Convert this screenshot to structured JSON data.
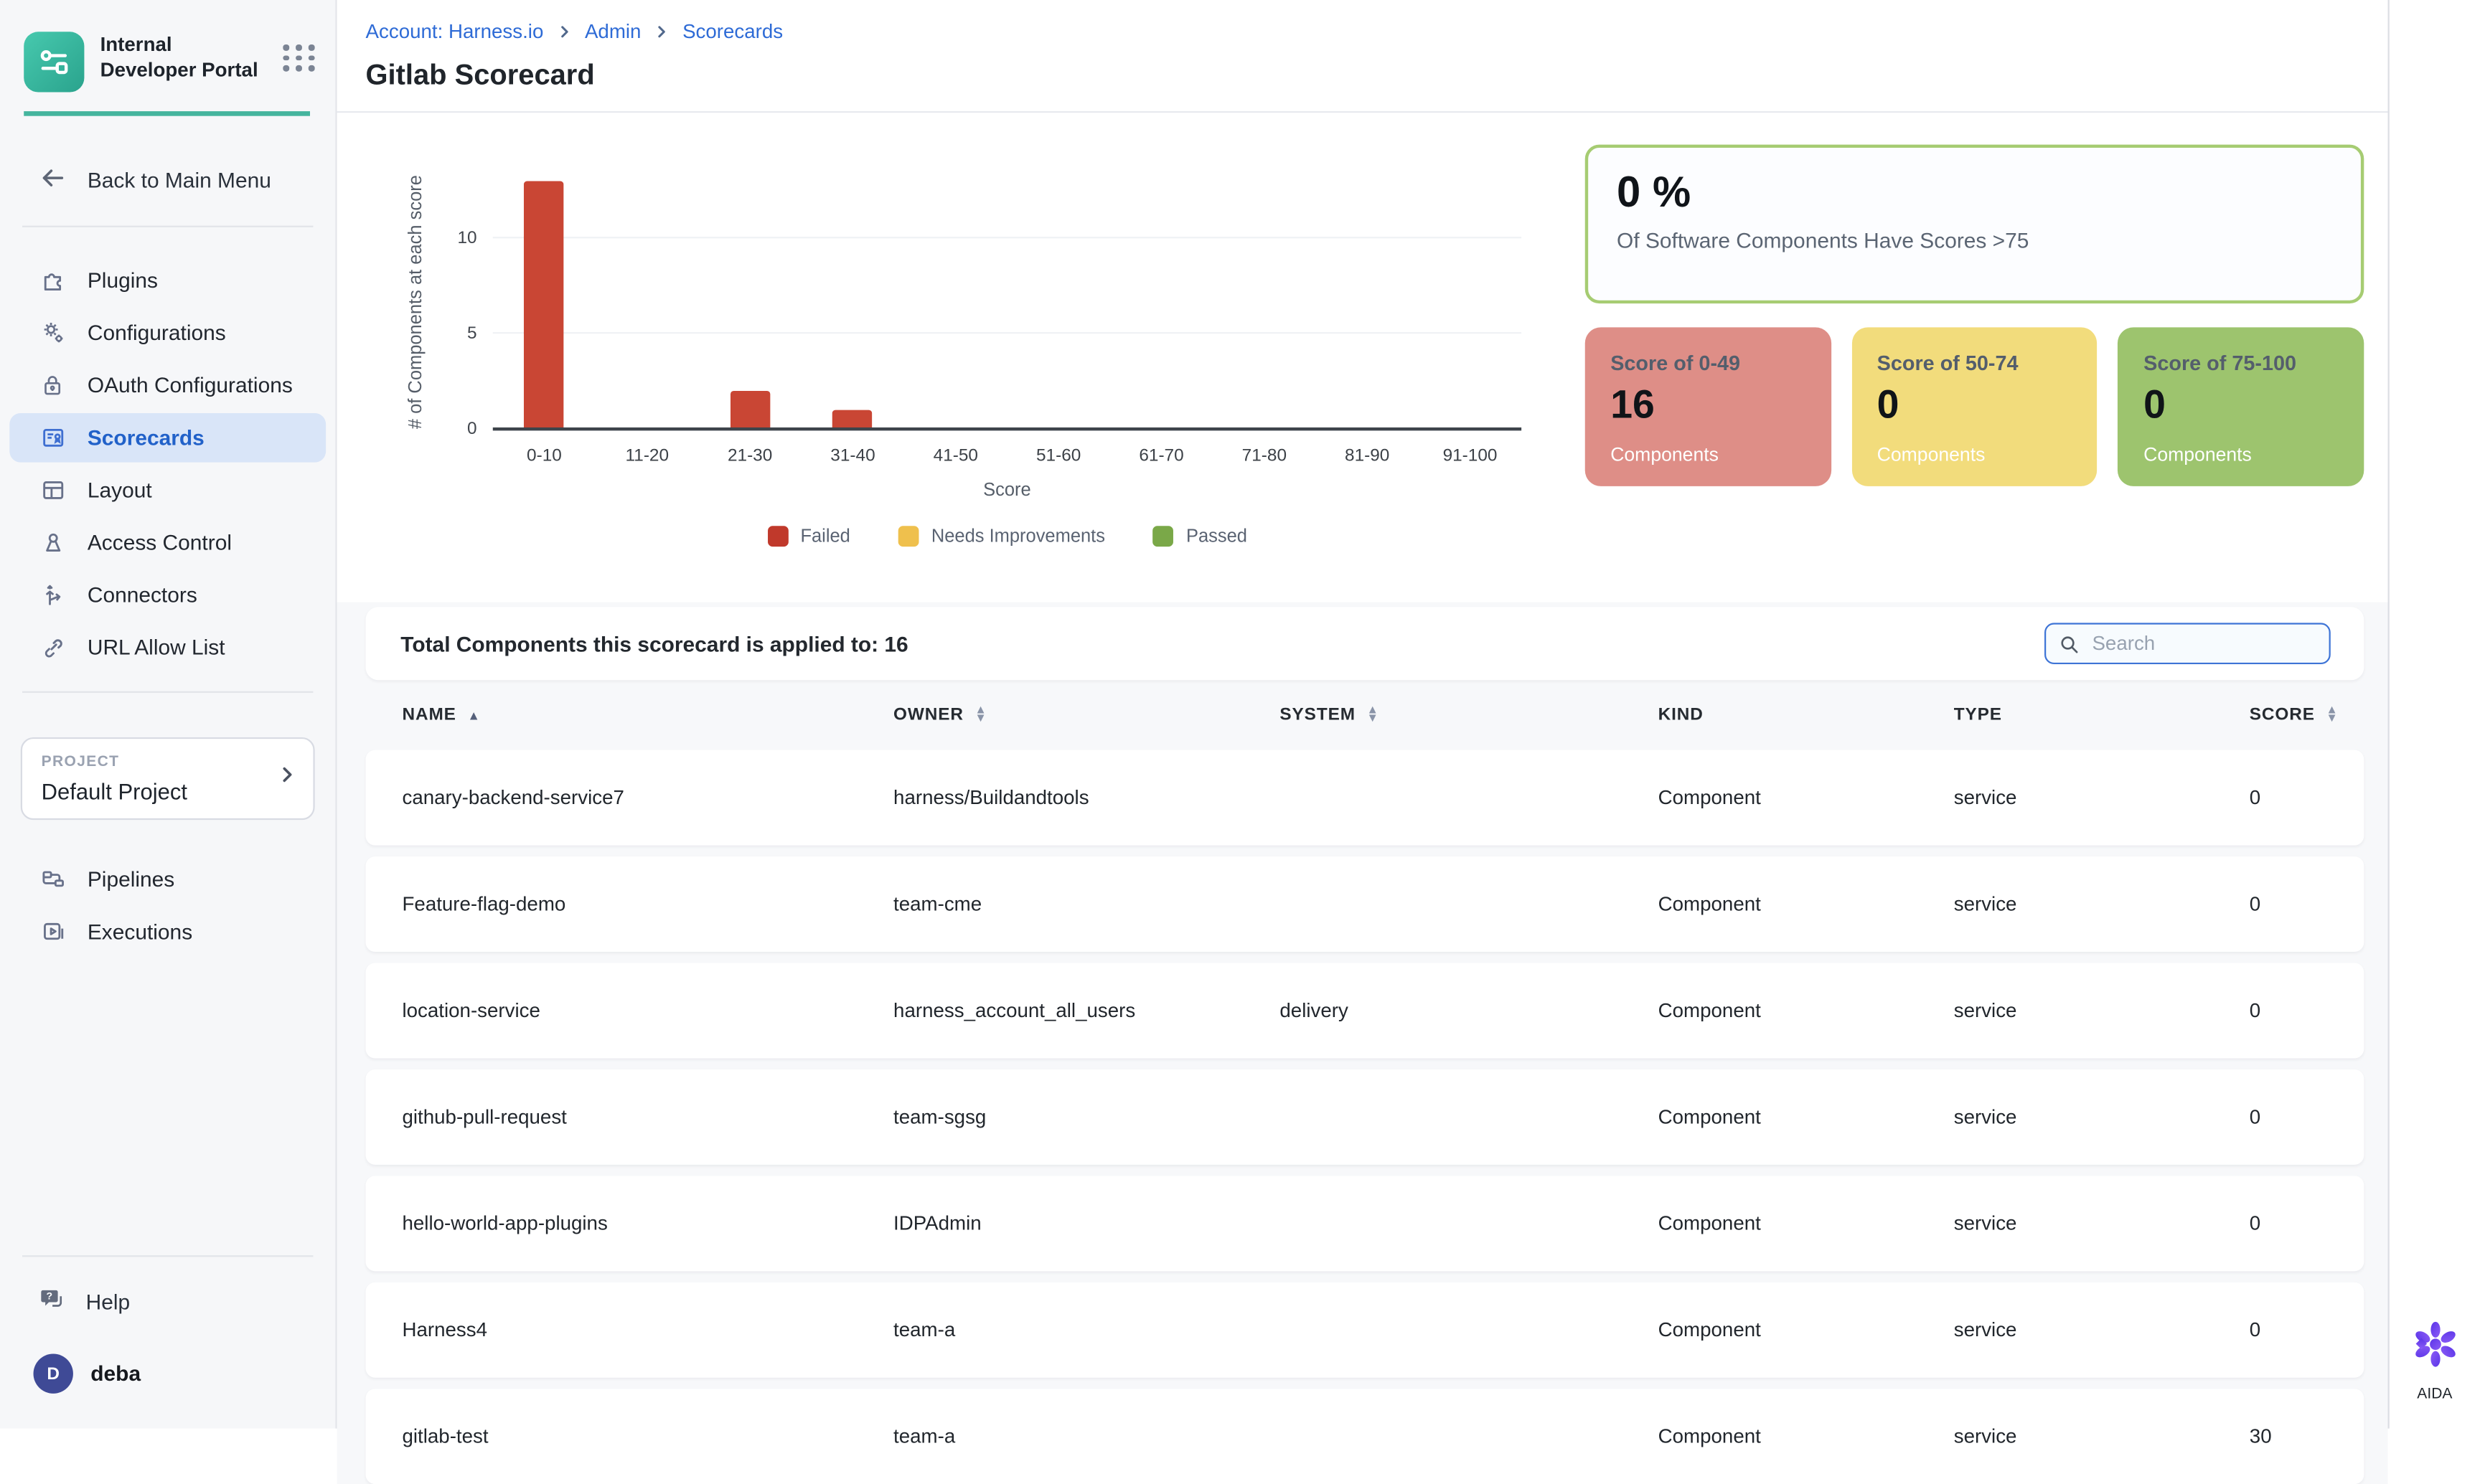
{
  "sidebar": {
    "logo_title": "Internal Developer Portal",
    "back_label": "Back to Main Menu",
    "items": [
      {
        "label": "Plugins"
      },
      {
        "label": "Configurations"
      },
      {
        "label": "OAuth Configurations"
      },
      {
        "label": "Scorecards"
      },
      {
        "label": "Layout"
      },
      {
        "label": "Access Control"
      },
      {
        "label": "Connectors"
      },
      {
        "label": "URL Allow List"
      }
    ],
    "project_label": "PROJECT",
    "project_name": "Default Project",
    "bottom_items": [
      {
        "label": "Pipelines"
      },
      {
        "label": "Executions"
      }
    ],
    "help_label": "Help",
    "user_name": "deba",
    "user_initial": "D"
  },
  "breadcrumb": {
    "items": [
      "Account: Harness.io",
      "Admin",
      "Scorecards"
    ]
  },
  "page_title": "Gitlab Scorecard",
  "chart_data": {
    "type": "bar",
    "title": "",
    "categories": [
      "0-10",
      "11-20",
      "21-30",
      "31-40",
      "41-50",
      "51-60",
      "61-70",
      "71-80",
      "81-90",
      "91-100"
    ],
    "values": [
      13,
      0,
      2,
      1,
      0,
      0,
      0,
      0,
      0,
      0
    ],
    "bar_color": "#c94634",
    "xlabel": "Score",
    "ylabel": "# of Components at each score",
    "ylim": [
      0,
      13.3
    ],
    "yticks": [
      0,
      5,
      10
    ],
    "grid": "horizontal",
    "legend_position": "bottom",
    "legend": [
      {
        "label": "Failed",
        "color": "#c0392b"
      },
      {
        "label": "Needs Improvements",
        "color": "#efc04d"
      },
      {
        "label": "Passed",
        "color": "#7aa848"
      }
    ]
  },
  "summary": {
    "percent": "0 %",
    "percent_caption": "Of Software Components Have Scores >75",
    "cards": [
      {
        "label": "Score of 0-49",
        "value": "16",
        "caption": "Components",
        "color": "#de8e87"
      },
      {
        "label": "Score of 50-74",
        "value": "0",
        "caption": "Components",
        "color": "#f2dc7c"
      },
      {
        "label": "Score of 75-100",
        "value": "0",
        "caption": "Components",
        "color": "#9dc46e"
      }
    ]
  },
  "toolbar": {
    "total_text": "Total Components this scorecard is applied to: 16",
    "search_placeholder": "Search"
  },
  "table": {
    "columns": [
      {
        "label": "NAME",
        "sort": "asc"
      },
      {
        "label": "OWNER",
        "sort": "both"
      },
      {
        "label": "SYSTEM",
        "sort": "both"
      },
      {
        "label": "KIND",
        "sort": "none"
      },
      {
        "label": "TYPE",
        "sort": "none"
      },
      {
        "label": "SCORE",
        "sort": "both"
      }
    ],
    "rows": [
      {
        "name": "canary-backend-service7",
        "owner": "harness/Buildandtools",
        "system": "",
        "kind": "Component",
        "type": "service",
        "score": "0"
      },
      {
        "name": "Feature-flag-demo",
        "owner": "team-cme",
        "system": "",
        "kind": "Component",
        "type": "service",
        "score": "0"
      },
      {
        "name": "location-service",
        "owner": "harness_account_all_users",
        "system": "delivery",
        "kind": "Component",
        "type": "service",
        "score": "0"
      },
      {
        "name": "github-pull-request",
        "owner": "team-sgsg",
        "system": "",
        "kind": "Component",
        "type": "service",
        "score": "0"
      },
      {
        "name": "hello-world-app-plugins",
        "owner": "IDPAdmin",
        "system": "",
        "kind": "Component",
        "type": "service",
        "score": "0"
      },
      {
        "name": "Harness4",
        "owner": "team-a",
        "system": "",
        "kind": "Component",
        "type": "service",
        "score": "0"
      },
      {
        "name": "gitlab-test",
        "owner": "team-a",
        "system": "",
        "kind": "Component",
        "type": "service",
        "score": "30"
      }
    ]
  },
  "aida": {
    "label": "AIDA"
  }
}
